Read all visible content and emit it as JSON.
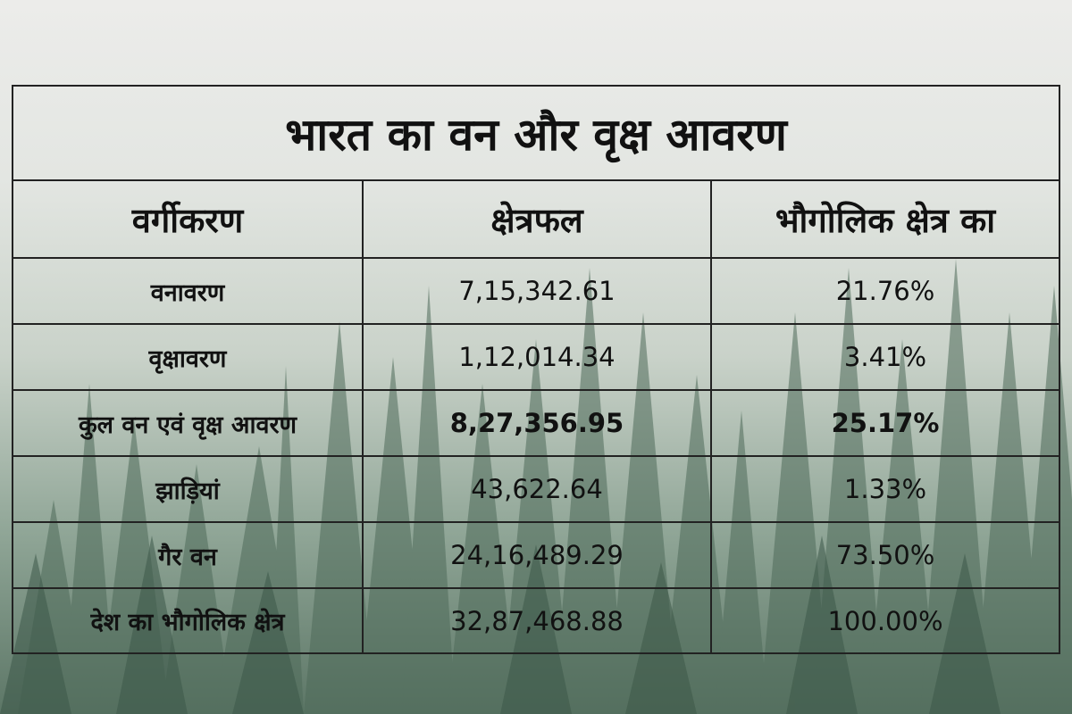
{
  "title": "भारत का वन और वृक्ष आवरण",
  "headers": [
    "वर्गीकरण",
    "क्षेत्रफल",
    "भौगोलिक क्षेत्र का"
  ],
  "rows": [
    {
      "category": "वनावरण",
      "area": "7,15,342.61",
      "percent": "21.76%"
    },
    {
      "category": "वृक्षावरण",
      "area": "1,12,014.34",
      "percent": "3.41%"
    },
    {
      "category": "कुल वन एवं वृक्ष आवरण",
      "area": "8,27,356.95",
      "percent": "25.17%"
    },
    {
      "category": "झाड़ियां",
      "area": "43,622.64",
      "percent": "1.33%"
    },
    {
      "category": "गैर वन",
      "area": "24,16,489.29",
      "percent": "73.50%"
    },
    {
      "category": "देश का भौगोलिक क्षेत्र",
      "area": "32,87,468.88",
      "percent": "100.00%"
    }
  ]
}
